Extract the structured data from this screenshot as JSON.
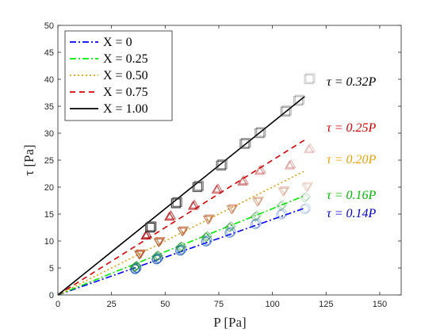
{
  "chart_data": {
    "type": "scatter",
    "xlabel": "P [Pa]",
    "ylabel": "τ [Pa]",
    "xlim": [
      0,
      160
    ],
    "ylim": [
      0,
      50
    ],
    "xticks": [
      "0",
      "25",
      "50",
      "75",
      "100",
      "125",
      "150"
    ],
    "yticks": [
      "0",
      "5",
      "10",
      "15",
      "20",
      "25",
      "30",
      "35",
      "40",
      "45",
      "50"
    ],
    "grid": false,
    "legend": "top-left",
    "legend_entries": [
      "X = 0",
      "X = 0.25",
      "X = 0.50",
      "X = 0.75",
      "X = 1.00"
    ],
    "series": [
      {
        "name": "X = 0",
        "marker": "circle",
        "color": "#1f5fbf",
        "line_style": "dashdot",
        "line_color": "#0000ff",
        "fit_slope": 0.14,
        "fit_label": "τ = 0.14P",
        "fit_label_color": "#0000cc",
        "x": [
          36,
          46,
          57,
          69,
          80,
          92,
          104,
          115
        ],
        "y": [
          4.8,
          6.6,
          8.2,
          9.9,
          11.5,
          13.1,
          14.9,
          15.9
        ]
      },
      {
        "name": "X = 0.25",
        "marker": "diamond",
        "color": "#2a9a3a",
        "line_style": "dashdot",
        "line_color": "#00ee00",
        "fit_slope": 0.16,
        "fit_label": "τ = 0.16P",
        "fit_label_color": "#00bb00",
        "x": [
          36,
          46,
          57,
          69,
          80,
          92,
          104,
          115
        ],
        "y": [
          5.2,
          7.1,
          8.8,
          10.7,
          12.5,
          14.5,
          16.5,
          18.0
        ]
      },
      {
        "name": "X = 0.50",
        "marker": "triangle-down",
        "color": "#b8501c",
        "line_style": "dotted",
        "line_color": "#e5a000",
        "fit_slope": 0.2,
        "fit_label": "τ = 0.20P",
        "fit_label_color": "#f0a000",
        "x": [
          38,
          47,
          58,
          70,
          81,
          93,
          105,
          116
        ],
        "y": [
          7.5,
          9.8,
          11.8,
          14.0,
          15.9,
          17.3,
          19.2,
          20.0
        ]
      },
      {
        "name": "X = 0.75",
        "marker": "triangle-up",
        "color": "#b81c1c",
        "line_style": "dashed",
        "line_color": "#e00000",
        "fit_slope": 0.25,
        "fit_label": "τ = 0.25P",
        "fit_label_color": "#dd0000",
        "x": [
          41,
          52,
          63,
          74,
          86,
          94,
          108,
          117
        ],
        "y": [
          11.0,
          14.5,
          16.5,
          19.5,
          21.0,
          23.0,
          24.0,
          27.0
        ]
      },
      {
        "name": "X = 1.00",
        "marker": "square",
        "color": "#333333",
        "line_style": "solid",
        "line_color": "#000000",
        "fit_slope": 0.32,
        "fit_label": "τ = 0.32P",
        "fit_label_color": "#000000",
        "x": [
          43,
          55,
          65,
          76,
          87,
          94,
          106,
          112,
          117
        ],
        "y": [
          12.5,
          17.0,
          20.0,
          24.0,
          28.0,
          30.0,
          34.0,
          36.0,
          40.0
        ]
      }
    ]
  }
}
